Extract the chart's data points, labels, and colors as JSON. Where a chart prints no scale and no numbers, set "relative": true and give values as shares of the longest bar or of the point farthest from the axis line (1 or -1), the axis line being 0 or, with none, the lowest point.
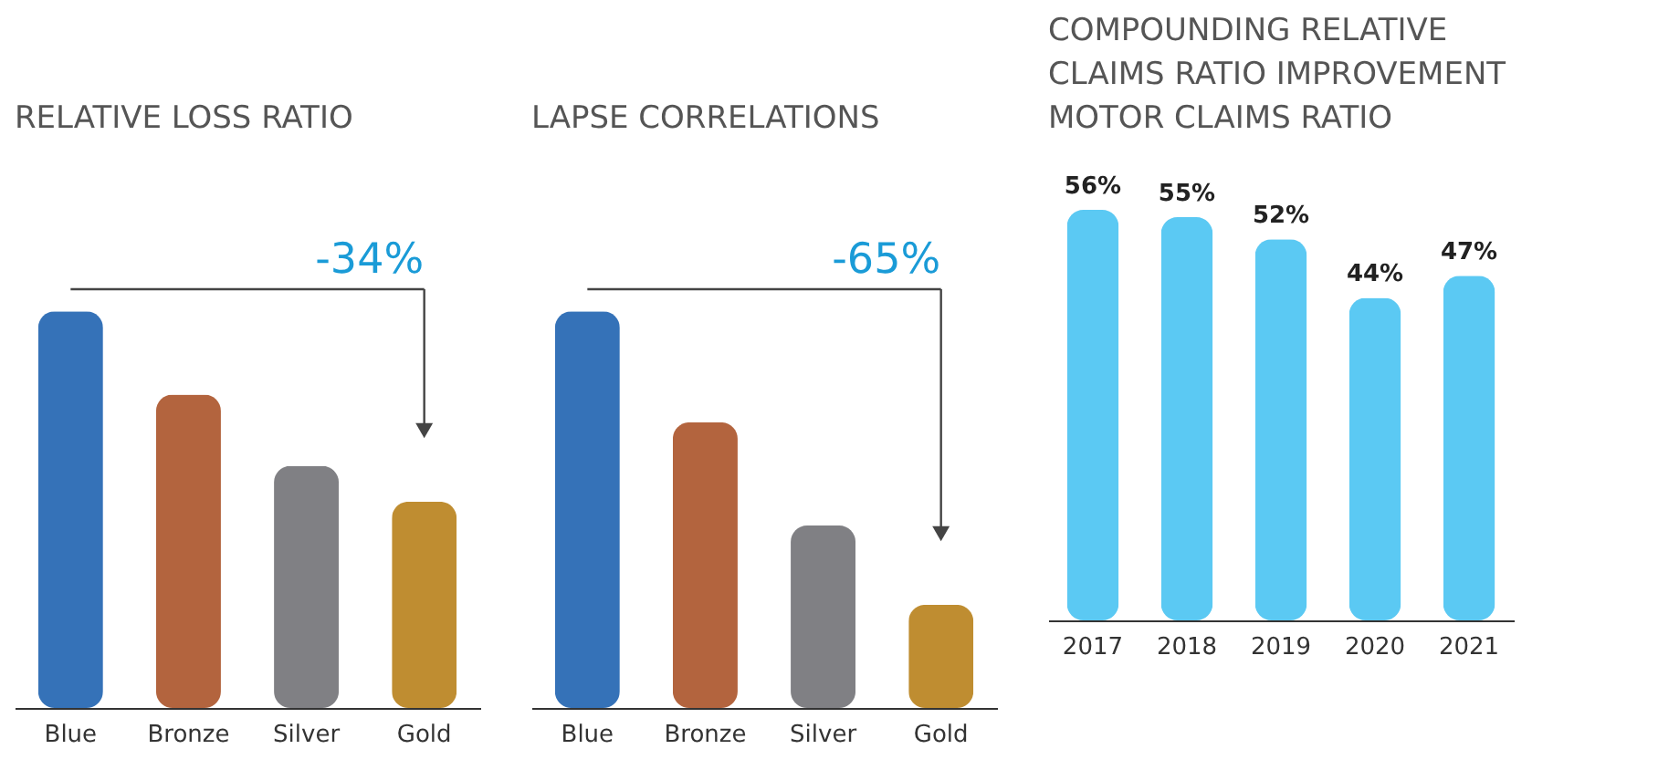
{
  "chart_data": [
    {
      "type": "bar",
      "title": "RELATIVE LOSS RATIO",
      "categories": [
        "Blue",
        "Bronze",
        "Silver",
        "Gold"
      ],
      "relative": true,
      "colors": [
        "#3572b8",
        "#b3643e",
        "#808084",
        "#bf8d31"
      ],
      "values": [
        1,
        0.79,
        0.61,
        0.52
      ],
      "annotations": [
        "-34%"
      ],
      "grid": false
    },
    {
      "type": "bar",
      "title": "LAPSE CORRELATIONS",
      "categories": [
        "Blue",
        "Bronze",
        "Silver",
        "Gold"
      ],
      "relative": true,
      "colors": [
        "#3572b8",
        "#b3643e",
        "#808084",
        "#bf8d31"
      ],
      "values": [
        1,
        0.72,
        0.46,
        0.26
      ],
      "annotations": [
        "-65%"
      ],
      "grid": false
    },
    {
      "type": "bar",
      "title": "COMPOUNDING RELATIVE CLAIMS RATIO IMPROVEMENT",
      "subtitle": "MOTOR CLAIMS RATIO",
      "categories": [
        "2017",
        "2018",
        "2019",
        "2020",
        "2021"
      ],
      "color": "#5bc9f3",
      "values": [
        56,
        55,
        52,
        44,
        47
      ],
      "data_labels": true,
      "value_labels": [
        "56%",
        "55%",
        "52%",
        "44%",
        "47%"
      ],
      "tick_labels": "x",
      "grid": false
    }
  ]
}
